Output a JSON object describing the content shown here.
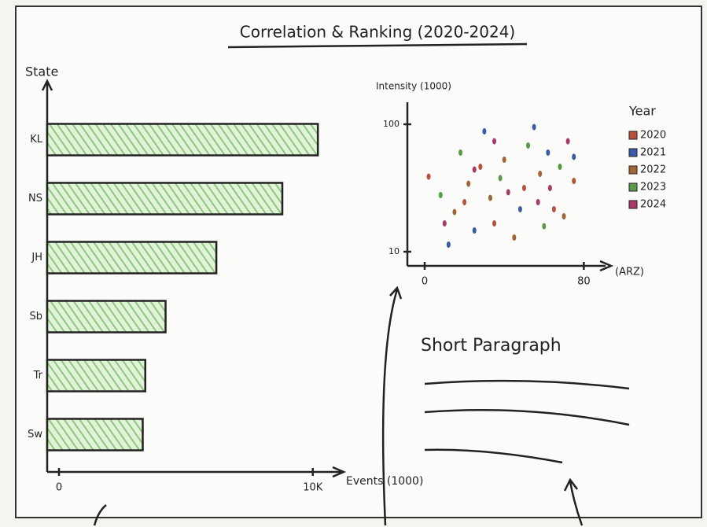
{
  "title": "Correlation & Ranking (2020-2024)",
  "chart_data": [
    {
      "type": "barh",
      "ylabel": "State",
      "xlabel": "Events (1000)",
      "categories": [
        "KL",
        "NS",
        "JH",
        "Sb",
        "Tr",
        "Sw"
      ],
      "values": [
        10.2,
        8.8,
        6.2,
        4.2,
        3.4,
        3.3
      ],
      "color": "#8cc97a",
      "xlim": [
        0,
        11
      ],
      "xticks": [
        0,
        {
          "value": 10,
          "label": "10K"
        }
      ]
    },
    {
      "type": "scatter",
      "ylabel": "Intensity (1000)",
      "xlabel": "(ARZ)",
      "legend_title": "Year",
      "legend": "right",
      "xlim": [
        0,
        85
      ],
      "xticks": [
        0,
        80
      ],
      "ylim": [
        0,
        110
      ],
      "yticks": [
        10,
        100
      ],
      "series": [
        {
          "name": "2020",
          "color": "#b5523b",
          "x": [
            2,
            20,
            35,
            50,
            65,
            28,
            75
          ],
          "values": [
            63,
            45,
            30,
            55,
            40,
            70,
            60
          ]
        },
        {
          "name": "2021",
          "color": "#3b5ba8",
          "x": [
            30,
            55,
            75,
            48,
            25,
            62,
            12
          ],
          "values": [
            95,
            98,
            77,
            40,
            25,
            80,
            15
          ]
        },
        {
          "name": "2022",
          "color": "#a0663a",
          "x": [
            22,
            40,
            58,
            70,
            33,
            45,
            15
          ],
          "values": [
            58,
            75,
            65,
            35,
            48,
            20,
            38
          ]
        },
        {
          "name": "2023",
          "color": "#5a9a4a",
          "x": [
            18,
            38,
            52,
            68,
            8,
            60
          ],
          "values": [
            80,
            62,
            85,
            70,
            50,
            28
          ]
        },
        {
          "name": "2024",
          "color": "#a83a6a",
          "x": [
            25,
            42,
            57,
            72,
            35,
            63,
            10
          ],
          "values": [
            68,
            52,
            45,
            88,
            88,
            55,
            30
          ]
        }
      ]
    }
  ],
  "paragraph": {
    "heading": "Short Paragraph"
  }
}
